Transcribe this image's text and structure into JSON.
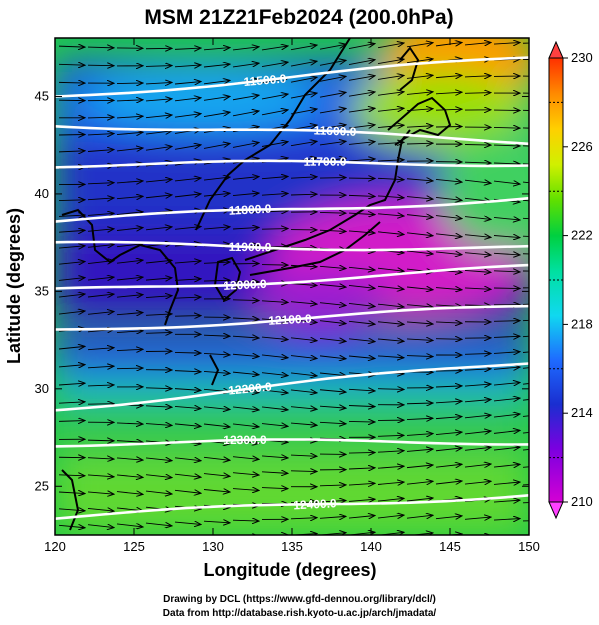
{
  "title": "MSM 21Z21Feb2024 (200.0hPa)",
  "xlabel": "Longitude (degrees)",
  "ylabel": "Latitude  (degrees)",
  "credit_drawing": "Drawing by DCL (https://www.gfd-dennou.org/library/dcl/)",
  "credit_data": "Data from http://database.rish.kyoto-u.ac.jp/arch/jmadata/",
  "map": {
    "lon_range": [
      120,
      150
    ],
    "lat_range": [
      22.5,
      48
    ],
    "lon_ticks": [
      "120",
      "125",
      "130",
      "135",
      "140",
      "145",
      "150"
    ],
    "lat_ticks": [
      "25",
      "30",
      "35",
      "40",
      "45"
    ],
    "colorbar": {
      "min": 210,
      "max": 230,
      "tick_labels": [
        "210",
        "214",
        "218",
        "222",
        "226",
        "230"
      ]
    },
    "contours": [
      {
        "label": "11500.0",
        "lat_left": 45.0,
        "lat_right": 47.0
      },
      {
        "label": "11600.0",
        "lat_left": 43.6,
        "lat_right": 42.7
      },
      {
        "label": "11700.0",
        "lat_left": 41.5,
        "lat_right": 41.6
      },
      {
        "label": "11800.0",
        "lat_left": 38.6,
        "lat_right": 39.8
      },
      {
        "label": "11900.0",
        "lat_left": 37.4,
        "lat_right": 37.2
      },
      {
        "label": "12000.0",
        "lat_left": 35.0,
        "lat_right": 36.2
      },
      {
        "label": "12100.0",
        "lat_left": 33.0,
        "lat_right": 34.2
      },
      {
        "label": "12200.0",
        "lat_left": 29.0,
        "lat_right": 31.4
      },
      {
        "label": "12300.0",
        "lat_left": 27.2,
        "lat_right": 27.3
      },
      {
        "label": "12400.0",
        "lat_left": 23.4,
        "lat_right": 24.6
      }
    ]
  }
}
